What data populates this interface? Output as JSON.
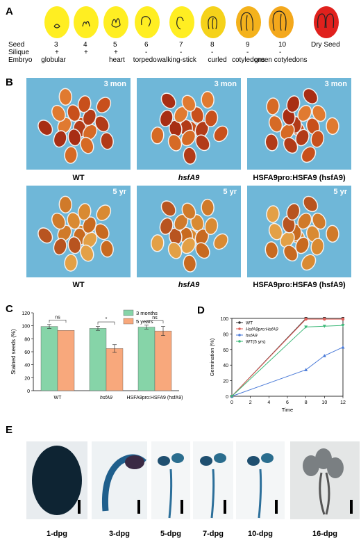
{
  "panels": {
    "A": "A",
    "B": "B",
    "C": "C",
    "D": "D",
    "E": "E"
  },
  "panelA": {
    "row_labels": [
      "Seed",
      "Silique",
      "Embryo"
    ],
    "stages": [
      {
        "seed": "3",
        "silique": "+",
        "embryo": "globular",
        "color": "#ffee22"
      },
      {
        "seed": "4",
        "silique": "+",
        "embryo": "",
        "color": "#ffee22"
      },
      {
        "seed": "5",
        "silique": "+",
        "embryo": "heart",
        "color": "#ffee22"
      },
      {
        "seed": "6",
        "silique": "-",
        "embryo": "torpedo",
        "color": "#ffee22"
      },
      {
        "seed": "7",
        "silique": "-",
        "embryo": "walking-stick",
        "color": "#ffee22"
      },
      {
        "seed": "8",
        "silique": "-",
        "embryo": "curled",
        "color": "#f5d21a"
      },
      {
        "seed": "9",
        "silique": "-",
        "embryo": "cotyledons",
        "color": "#f4b21c"
      },
      {
        "seed": "10",
        "silique": "-",
        "embryo": "green cotyledons",
        "color": "#f4a81c"
      },
      {
        "seed": "Dry Seed",
        "silique": "",
        "embryo": "",
        "color": "#e0211d"
      }
    ]
  },
  "panelB": {
    "top_tags": [
      "3 mon",
      "3 mon",
      "3 mon"
    ],
    "bottom_tags": [
      "5 yr",
      "5 yr",
      "5 yr"
    ],
    "captions_top": [
      "WT",
      "hsfA9",
      "HSFA9pro:HSFA9 (hsfA9)"
    ],
    "captions_bottom": [
      "WT",
      "hsfA9",
      "HSFA9pro:HSFA9 (hsfA9)"
    ]
  },
  "chartC": {
    "type": "bar",
    "ylabel": "Stained seeds (%)",
    "ylim": [
      0,
      120
    ],
    "yticks": [
      "0",
      "20",
      "40",
      "60",
      "80",
      "100",
      "120"
    ],
    "categories": [
      "WT",
      "hsfA9",
      "HSFA9pro:HSFA9 (hsfA9)"
    ],
    "series": [
      {
        "name": "3 months",
        "values": [
          99,
          96,
          98
        ],
        "err": [
          3,
          3,
          3
        ],
        "color": "#86d4a8"
      },
      {
        "name": "5 years",
        "values": [
          93,
          65,
          92
        ],
        "err": [
          0,
          6,
          7
        ],
        "color": "#f8a87c"
      }
    ],
    "significance": [
      "ns",
      "*",
      "ns"
    ]
  },
  "chartD": {
    "type": "line",
    "xlabel": "Time",
    "ylabel": "Germination (%)",
    "xlim": [
      0,
      12
    ],
    "ylim": [
      0,
      100
    ],
    "xticks": [
      "0",
      "2",
      "4",
      "6",
      "8",
      "10",
      "12"
    ],
    "yticks": [
      "0",
      "20",
      "40",
      "60",
      "80",
      "100"
    ],
    "x": [
      0,
      8,
      10,
      12
    ],
    "series": [
      {
        "name": "WT",
        "values": [
          0,
          100,
          100,
          100
        ],
        "color": "#333333",
        "marker": "square"
      },
      {
        "name": "HsfA9pro:HsfA9",
        "values": [
          0,
          99,
          99,
          99
        ],
        "color": "#e0605a",
        "marker": "circle"
      },
      {
        "name": "hsfA9",
        "values": [
          0,
          34,
          52,
          63
        ],
        "color": "#4a7ad8",
        "marker": "triangle"
      },
      {
        "name": "WT(5 yrs)",
        "values": [
          0,
          89,
          90,
          91
        ],
        "color": "#3cb878",
        "marker": "triangle-down"
      }
    ]
  },
  "panelE": {
    "labels": [
      "1-dpg",
      "3-dpg",
      "5-dpg",
      "7-dpg",
      "10-dpg",
      "16-dpg"
    ]
  }
}
